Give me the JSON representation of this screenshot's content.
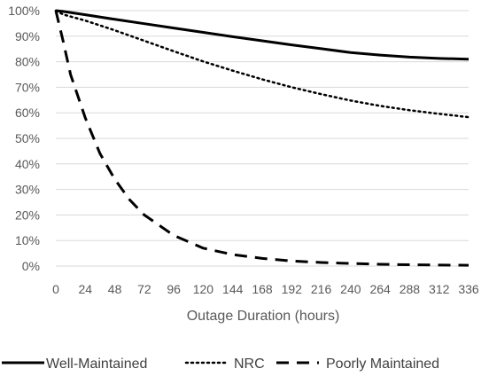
{
  "chart_data": {
    "type": "line",
    "title": "",
    "xlabel": "Outage Duration (hours)",
    "ylabel": "",
    "x_ticks": [
      0,
      24,
      48,
      72,
      96,
      120,
      144,
      168,
      192,
      216,
      240,
      264,
      288,
      312,
      336
    ],
    "y_ticks": [
      0,
      10,
      20,
      30,
      40,
      50,
      60,
      70,
      80,
      90,
      100
    ],
    "y_tick_labels": [
      "0%",
      "10%",
      "20%",
      "30%",
      "40%",
      "50%",
      "60%",
      "70%",
      "80%",
      "90%",
      "100%"
    ],
    "xlim": [
      0,
      336
    ],
    "ylim": [
      0,
      100
    ],
    "grid": "horizontal",
    "legend_position": "bottom",
    "series": [
      {
        "name": "Well-Maintained",
        "style": "solid",
        "color": "#000000",
        "x": [
          0,
          6,
          24,
          48,
          72,
          96,
          120,
          144,
          168,
          192,
          216,
          240,
          264,
          288,
          312,
          336
        ],
        "y": [
          100,
          99.7,
          98.4,
          96.6,
          94.9,
          93.2,
          91.5,
          89.8,
          88.2,
          86.6,
          85.1,
          83.6,
          82.6,
          81.8,
          81.3,
          81
        ]
      },
      {
        "name": "NRC",
        "style": "dotted",
        "color": "#000000",
        "x": [
          0,
          6,
          24,
          48,
          72,
          96,
          120,
          144,
          168,
          192,
          216,
          240,
          264,
          288,
          312,
          336
        ],
        "y": [
          100,
          98.5,
          96.1,
          92.3,
          88.2,
          84.1,
          80.1,
          76.5,
          73.1,
          70.0,
          67.3,
          64.8,
          62.7,
          61.0,
          59.6,
          58.3
        ]
      },
      {
        "name": "Poorly Maintained",
        "style": "dashed",
        "color": "#000000",
        "x": [
          0,
          6,
          12,
          24,
          36,
          48,
          60,
          72,
          96,
          120,
          144,
          168,
          192,
          216,
          240,
          264,
          288,
          312,
          336
        ],
        "y": [
          100,
          88,
          75,
          58,
          44,
          34,
          26,
          20,
          12,
          7,
          4.5,
          3,
          2,
          1.4,
          1,
          0.7,
          0.5,
          0.4,
          0.3
        ]
      }
    ]
  }
}
